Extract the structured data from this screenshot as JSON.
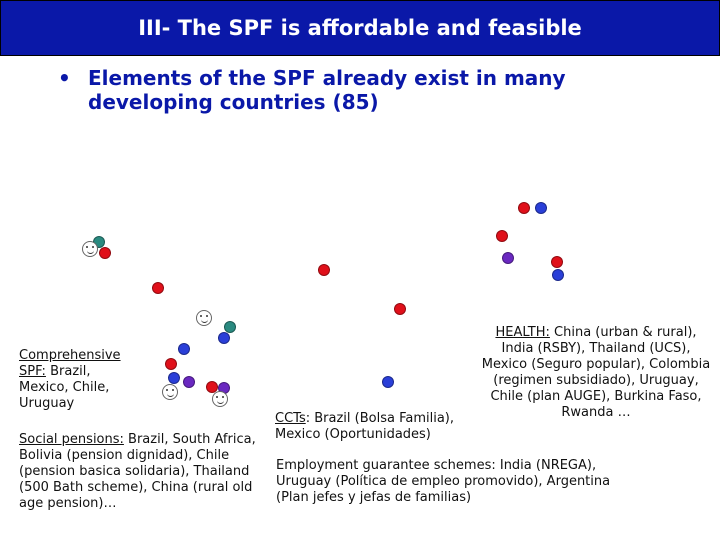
{
  "title": "III- The SPF is affordable and feasible",
  "bullet": "Elements of the SPF already exist in many developing countries (85)",
  "colors": {
    "title_bg": "#0a18a8",
    "red": "#e0101a",
    "blue": "#2a3fd8",
    "purple": "#6a28c0",
    "teal": "#2a8a80"
  },
  "notes": {
    "comprehensive": {
      "label": "Comprehensive SPF:",
      "text": " Brazil, Mexico, Chile, Uruguay"
    },
    "social_pensions": {
      "label": "Social pensions:",
      "text": " Brazil, South Africa, Bolivia (pension dignidad), Chile (pension basica solidaria), Thailand (500 Bath scheme), China (rural old age pension)…"
    },
    "ccts": {
      "label": "CCTs",
      "text": ": Brazil (Bolsa Familia), Mexico (Oportunidades)"
    },
    "health": {
      "label": "HEALTH:",
      "text": " China (urban & rural), India (RSBY), Thailand (UCS), Mexico (Seguro popular), Colombia (regimen subsidiado), Uruguay, Chile (plan AUGE), Burkina Faso, Rwanda …"
    },
    "employment": {
      "text": "Employment guarantee schemes: India (NREGA), Uruguay (Política de empleo promovido), Argentina (Plan jefes y jefas de familias)"
    }
  }
}
